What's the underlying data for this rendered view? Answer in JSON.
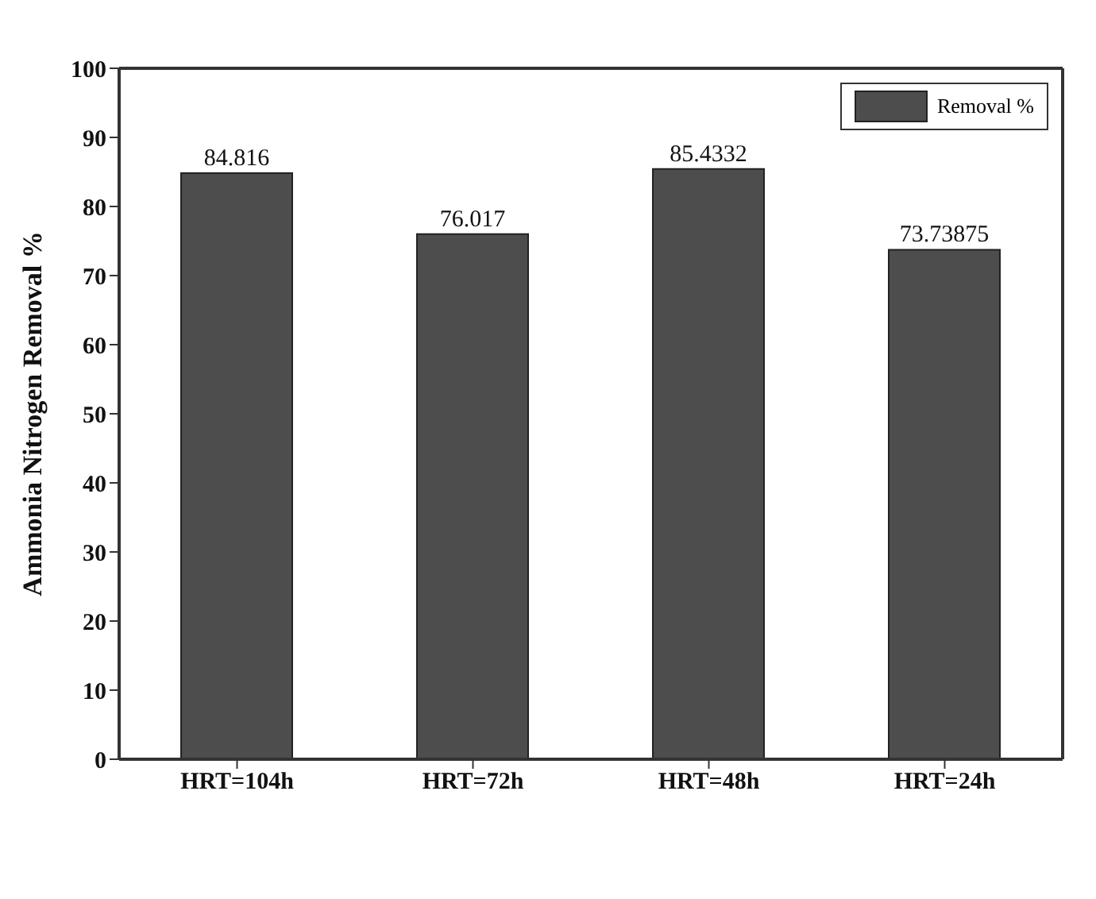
{
  "chart_data": {
    "type": "bar",
    "ylabel": "Ammonia Nitrogen Removal %",
    "categories": [
      "HRT=104h",
      "HRT=72h",
      "HRT=48h",
      "HRT=24h"
    ],
    "series": [
      {
        "name": "Removal %",
        "color": "#4d4d4d",
        "values": [
          84.816,
          76.017,
          85.4332,
          73.73875
        ]
      }
    ],
    "ylim": [
      0,
      100
    ],
    "yticks": [
      0,
      10,
      20,
      30,
      40,
      50,
      60,
      70,
      80,
      90,
      100
    ],
    "data_labels": true,
    "legend": "top right",
    "grid": false
  }
}
